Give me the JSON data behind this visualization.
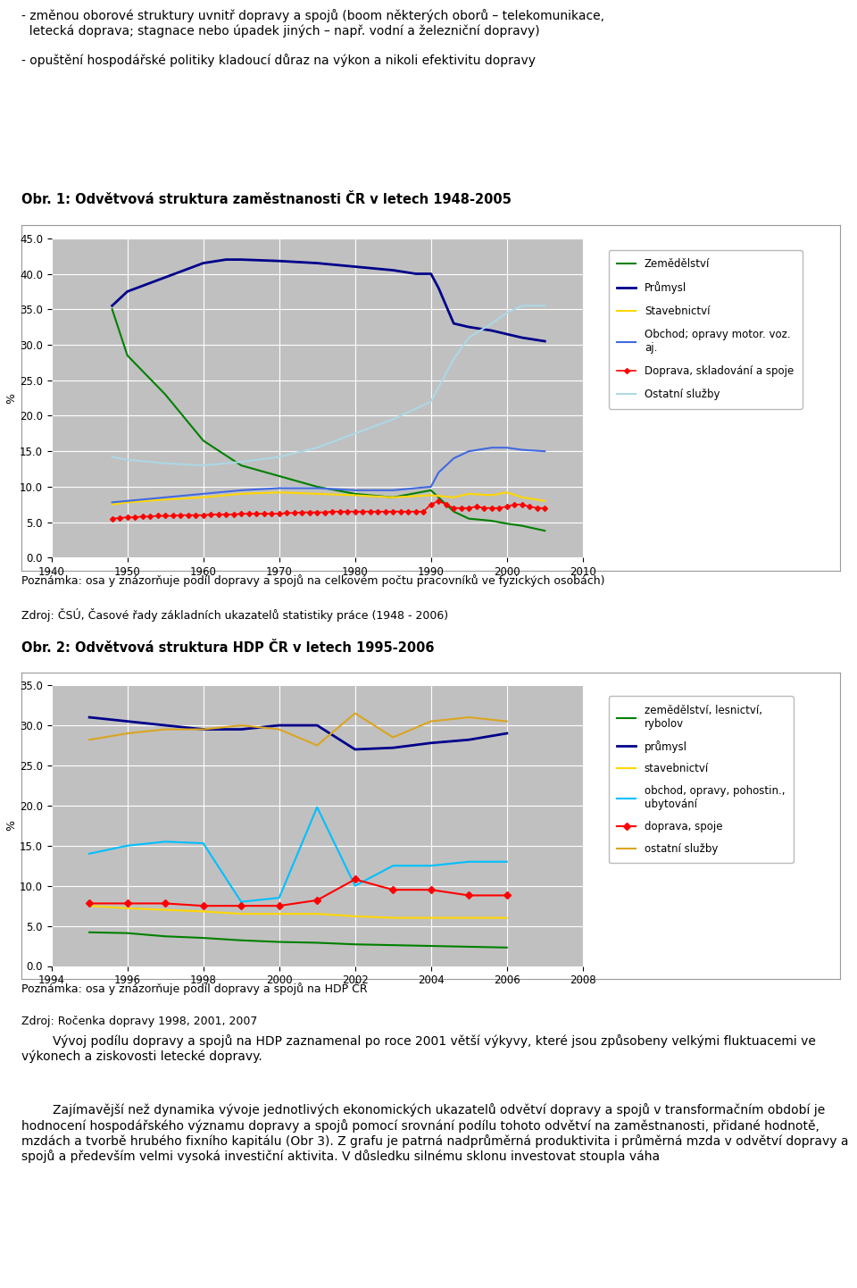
{
  "chart1": {
    "title": "Obr. 1: Odvětvová struktura zaměstnanosti ČR v letech 1948-2005",
    "ylabel": "%",
    "ylim": [
      0.0,
      45.0
    ],
    "yticks": [
      0.0,
      5.0,
      10.0,
      15.0,
      20.0,
      25.0,
      30.0,
      35.0,
      40.0,
      45.0
    ],
    "xlim": [
      1940,
      2010
    ],
    "xticks": [
      1940,
      1950,
      1960,
      1970,
      1980,
      1990,
      2000,
      2010
    ],
    "bg_color": "#c0c0c0",
    "grid_color": "#ffffff",
    "note": "Poznámka: osa y znázorňuje podíl dopravy a spojů na celkovém počtu pracovníků ve fyzických osobách)",
    "source": "Zdroj: ČSÚ, Časové řady základních ukazatelů statistiky práce (1948 - 2006)",
    "series": [
      {
        "label": "Zemědělství",
        "color": "#008000",
        "marker": null,
        "linewidth": 1.5,
        "years": [
          1948,
          1950,
          1955,
          1960,
          1965,
          1970,
          1975,
          1980,
          1985,
          1990,
          1993,
          1995,
          1998,
          2000,
          2002,
          2005
        ],
        "values": [
          35.0,
          28.5,
          23.0,
          16.5,
          13.0,
          11.5,
          10.0,
          9.0,
          8.5,
          9.5,
          6.5,
          5.5,
          5.2,
          4.8,
          4.5,
          3.8
        ]
      },
      {
        "label": "Průmysl",
        "color": "#00008B",
        "marker": null,
        "linewidth": 2.0,
        "years": [
          1948,
          1950,
          1955,
          1960,
          1963,
          1965,
          1970,
          1975,
          1980,
          1985,
          1988,
          1990,
          1991,
          1993,
          1995,
          1998,
          2000,
          2002,
          2005
        ],
        "values": [
          35.5,
          37.5,
          39.5,
          41.5,
          42.0,
          42.0,
          41.8,
          41.5,
          41.0,
          40.5,
          40.0,
          40.0,
          38.0,
          33.0,
          32.5,
          32.0,
          31.5,
          31.0,
          30.5
        ]
      },
      {
        "label": "Stavebnictví",
        "color": "#FFD700",
        "marker": null,
        "linewidth": 1.5,
        "years": [
          1948,
          1950,
          1955,
          1960,
          1965,
          1970,
          1975,
          1980,
          1985,
          1990,
          1993,
          1995,
          1998,
          2000,
          2002,
          2005
        ],
        "values": [
          7.5,
          7.8,
          8.2,
          8.5,
          9.0,
          9.2,
          9.0,
          8.8,
          8.5,
          8.8,
          8.5,
          9.0,
          8.8,
          9.2,
          8.5,
          8.0
        ]
      },
      {
        "label": "Obchod; opravy motor. voz.\naj.",
        "color": "#4169E1",
        "marker": null,
        "linewidth": 1.5,
        "years": [
          1948,
          1950,
          1955,
          1960,
          1965,
          1970,
          1975,
          1980,
          1985,
          1990,
          1991,
          1993,
          1995,
          1998,
          2000,
          2002,
          2005
        ],
        "values": [
          7.8,
          8.0,
          8.5,
          9.0,
          9.5,
          9.8,
          9.8,
          9.5,
          9.5,
          10.0,
          12.0,
          14.0,
          15.0,
          15.5,
          15.5,
          15.2,
          15.0
        ]
      },
      {
        "label": "Doprava, skladování a spoje",
        "color": "#FF0000",
        "marker": "D",
        "markersize": 3,
        "linewidth": 1.2,
        "years": [
          1948,
          1949,
          1950,
          1951,
          1952,
          1953,
          1954,
          1955,
          1956,
          1957,
          1958,
          1959,
          1960,
          1961,
          1962,
          1963,
          1964,
          1965,
          1966,
          1967,
          1968,
          1969,
          1970,
          1971,
          1972,
          1973,
          1974,
          1975,
          1976,
          1977,
          1978,
          1979,
          1980,
          1981,
          1982,
          1983,
          1984,
          1985,
          1986,
          1987,
          1988,
          1989,
          1990,
          1991,
          1992,
          1993,
          1994,
          1995,
          1996,
          1997,
          1998,
          1999,
          2000,
          2001,
          2002,
          2003,
          2004,
          2005
        ],
        "values": [
          5.5,
          5.6,
          5.7,
          5.7,
          5.8,
          5.8,
          5.9,
          5.9,
          5.9,
          6.0,
          6.0,
          6.0,
          6.0,
          6.1,
          6.1,
          6.1,
          6.1,
          6.2,
          6.2,
          6.2,
          6.2,
          6.2,
          6.2,
          6.3,
          6.3,
          6.4,
          6.4,
          6.4,
          6.4,
          6.5,
          6.5,
          6.5,
          6.5,
          6.5,
          6.5,
          6.5,
          6.5,
          6.5,
          6.5,
          6.5,
          6.5,
          6.5,
          7.5,
          8.0,
          7.5,
          7.0,
          7.0,
          7.0,
          7.2,
          7.0,
          7.0,
          7.0,
          7.2,
          7.5,
          7.5,
          7.2,
          7.0,
          7.0
        ]
      },
      {
        "label": "Ostatní služby",
        "color": "#ADD8E6",
        "marker": null,
        "linewidth": 1.5,
        "years": [
          1948,
          1950,
          1955,
          1960,
          1965,
          1970,
          1975,
          1980,
          1985,
          1990,
          1993,
          1995,
          1998,
          2000,
          2002,
          2005
        ],
        "values": [
          14.2,
          13.8,
          13.3,
          13.0,
          13.5,
          14.2,
          15.5,
          17.5,
          19.5,
          22.0,
          28.0,
          31.0,
          33.0,
          34.5,
          35.5,
          35.5
        ]
      }
    ]
  },
  "chart2": {
    "title": "Obr. 2: Odvětvová struktura HDP ČR v letech 1995-2006",
    "ylabel": "%",
    "ylim": [
      0.0,
      35.0
    ],
    "yticks": [
      0.0,
      5.0,
      10.0,
      15.0,
      20.0,
      25.0,
      30.0,
      35.0
    ],
    "xlim": [
      1994,
      2008
    ],
    "xticks": [
      1994,
      1996,
      1998,
      2000,
      2002,
      2004,
      2006,
      2008
    ],
    "bg_color": "#c0c0c0",
    "grid_color": "#ffffff",
    "note": "Poznámka: osa y znázorňuje podíl dopravy a spojů na HDP ČR",
    "source": "Zdroj: Ročenka dopravy 1998, 2001, 2007",
    "series": [
      {
        "label": "zemědělství, lesnictví,\nrybolov",
        "color": "#008000",
        "marker": null,
        "linewidth": 1.5,
        "years": [
          1995,
          1996,
          1997,
          1998,
          1999,
          2000,
          2001,
          2002,
          2003,
          2004,
          2005,
          2006
        ],
        "values": [
          4.2,
          4.1,
          3.7,
          3.5,
          3.2,
          3.0,
          2.9,
          2.7,
          2.6,
          2.5,
          2.4,
          2.3
        ]
      },
      {
        "label": "průmysl",
        "color": "#00008B",
        "marker": null,
        "linewidth": 2.0,
        "years": [
          1995,
          1996,
          1997,
          1998,
          1999,
          2000,
          2001,
          2002,
          2003,
          2004,
          2005,
          2006
        ],
        "values": [
          31.0,
          30.5,
          30.0,
          29.5,
          29.5,
          30.0,
          30.0,
          27.0,
          27.2,
          27.8,
          28.2,
          29.0
        ]
      },
      {
        "label": "stavebnictví",
        "color": "#FFD700",
        "marker": null,
        "linewidth": 1.5,
        "years": [
          1995,
          1996,
          1997,
          1998,
          1999,
          2000,
          2001,
          2002,
          2003,
          2004,
          2005,
          2006
        ],
        "values": [
          7.5,
          7.2,
          7.0,
          6.8,
          6.5,
          6.5,
          6.5,
          6.2,
          6.0,
          6.0,
          6.0,
          6.0
        ]
      },
      {
        "label": "obchod, opravy, pohostin.,\nubytování",
        "color": "#00BFFF",
        "marker": null,
        "linewidth": 1.5,
        "years": [
          1995,
          1996,
          1997,
          1998,
          1999,
          2000,
          2001,
          2002,
          2003,
          2004,
          2005,
          2006
        ],
        "values": [
          14.0,
          15.0,
          15.5,
          15.3,
          8.0,
          8.5,
          19.8,
          10.0,
          12.5,
          12.5,
          13.0,
          13.0
        ]
      },
      {
        "label": "doprava, spoje",
        "color": "#FF0000",
        "marker": "D",
        "markersize": 4,
        "linewidth": 1.5,
        "years": [
          1995,
          1996,
          1997,
          1998,
          1999,
          2000,
          2001,
          2002,
          2003,
          2004,
          2005,
          2006
        ],
        "values": [
          7.8,
          7.8,
          7.8,
          7.5,
          7.5,
          7.5,
          8.2,
          10.8,
          9.5,
          9.5,
          8.8,
          8.8
        ]
      },
      {
        "label": "ostatní služby",
        "color": "#DAA520",
        "marker": null,
        "linewidth": 1.5,
        "years": [
          1995,
          1996,
          1997,
          1998,
          1999,
          2000,
          2001,
          2002,
          2003,
          2004,
          2005,
          2006
        ],
        "values": [
          28.2,
          29.0,
          29.5,
          29.5,
          30.0,
          29.5,
          27.5,
          31.5,
          28.5,
          30.5,
          31.0,
          30.5
        ]
      }
    ]
  },
  "top_text_line1": "- změnou oborové struktury uvnitř dopravy a spojů (boom některých oborů – telekomunikace,",
  "top_text_line2": "  letecká doprava; stagnace nebo úpadek jiných – např. vodní a železniční dopravy)",
  "top_text_line3": "- opuštění hospodářské politiky kladoucí důraz na výkon a nikoli efektivitu dopravy",
  "bottom_para1": "        Vývoj podílu dopravy a spojů na HDP zaznamenal po roce 2001 větší výkyvy, které jsou způsobeny velkými fluktuacemi ve výkonech a ziskovosti letecké dopravy.",
  "bottom_para2": "        Zajímavější než dynamika vývoje jednotlivých ekonomických ukazatelů odvětví dopravy a spojů v transformačním období je hodnocení hospodářského významu dopravy a spojů pomocí srovnání podílu tohoto odvětví na zaměstnanosti, přidané hodnotě, mzdách a tvorbě hrubého fixního kapitálu (Obr 3). Z grafu je patrná nadprůměrná produktivita i průměrná mzda v odvětví dopravy a spojů a především velmi vysoká investiční aktivita. V důsledku silnému sklonu investovat stoupla váha"
}
